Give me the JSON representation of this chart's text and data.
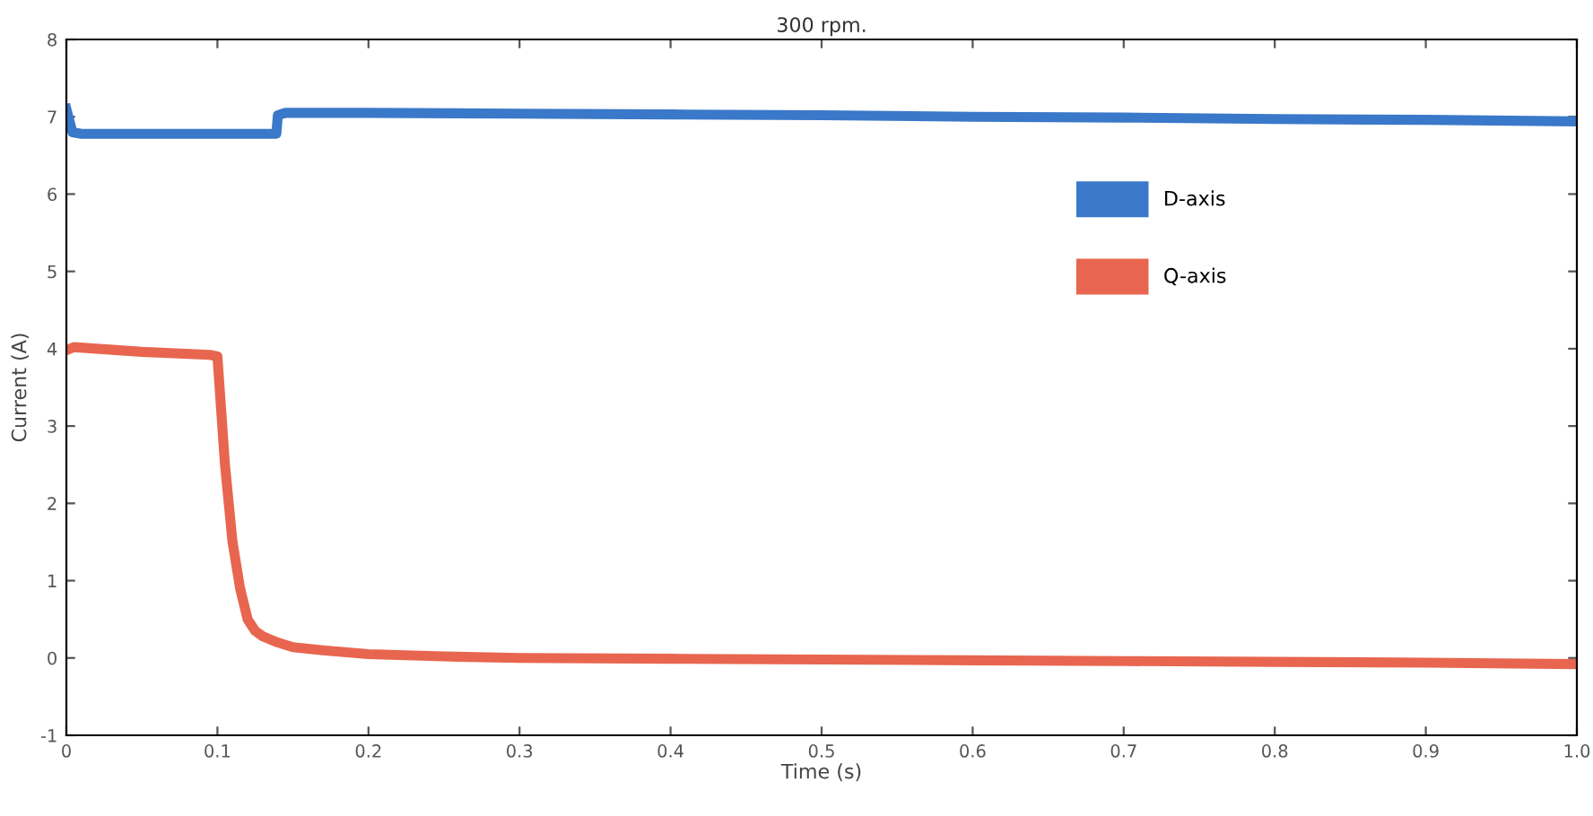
{
  "chart_data": {
    "type": "line",
    "title": "300 rpm.",
    "xlabel": "Time (s)",
    "ylabel": "Current (A)",
    "xlim": [
      0,
      1
    ],
    "xticks": [
      0,
      0.1,
      0.2,
      0.3,
      0.4,
      0.5,
      0.6,
      0.7,
      0.8,
      0.9,
      {
        "value": 1,
        "label": "1.0"
      }
    ],
    "ylim": [
      -1,
      8
    ],
    "yticks": [
      -1,
      0,
      1,
      2,
      3,
      4,
      5,
      6,
      7,
      8
    ],
    "grid": false,
    "legend": "upper right",
    "line_style": "solid",
    "marker": "none",
    "series": [
      {
        "name": "D-axis",
        "color": "#3a78c9",
        "x": [
          0,
          0.004,
          0.01,
          0.05,
          0.095,
          0.139,
          0.14,
          0.145,
          0.2,
          0.3,
          0.4,
          0.5,
          0.6,
          0.7,
          0.8,
          0.9,
          1.0
        ],
        "values": [
          7.1,
          6.8,
          6.78,
          6.78,
          6.78,
          6.78,
          7.02,
          7.05,
          7.05,
          7.04,
          7.03,
          7.02,
          7.0,
          6.99,
          6.97,
          6.96,
          6.94
        ]
      },
      {
        "name": "Q-axis",
        "color": "#e8664f",
        "x": [
          0,
          0.005,
          0.05,
          0.095,
          0.1,
          0.105,
          0.11,
          0.115,
          0.12,
          0.125,
          0.13,
          0.14,
          0.15,
          0.17,
          0.2,
          0.25,
          0.3,
          0.4,
          0.5,
          0.6,
          0.7,
          0.8,
          0.9,
          1.0
        ],
        "values": [
          3.98,
          4.02,
          3.96,
          3.92,
          3.9,
          2.5,
          1.5,
          0.9,
          0.5,
          0.35,
          0.28,
          0.2,
          0.14,
          0.1,
          0.05,
          0.02,
          0.0,
          -0.01,
          -0.02,
          -0.03,
          -0.04,
          -0.05,
          -0.06,
          -0.08
        ]
      }
    ]
  }
}
